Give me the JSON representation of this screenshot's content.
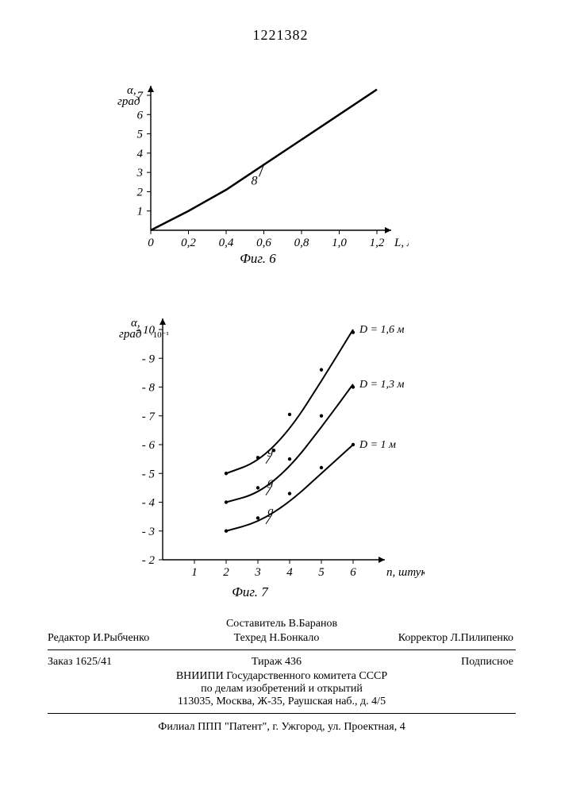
{
  "docNumber": "1221382",
  "fig6": {
    "type": "line",
    "caption": "Фиг. 6",
    "ylabel": "α, град",
    "xlabel": "L, м",
    "xlim": [
      0,
      1.2
    ],
    "ylim": [
      0,
      7
    ],
    "xticks": [
      0,
      0.2,
      0.4,
      0.6,
      0.8,
      1.0,
      1.2
    ],
    "xtick_labels": [
      "0",
      "0,2",
      "0,4",
      "0,6",
      "0,8",
      "1,0",
      "1,2"
    ],
    "yticks": [
      1,
      2,
      3,
      4,
      5,
      6,
      7
    ],
    "curve_label": "8",
    "curve_points_xy": [
      [
        0,
        0
      ],
      [
        0.2,
        1.0
      ],
      [
        0.4,
        2.1
      ],
      [
        0.6,
        3.4
      ],
      [
        0.8,
        4.7
      ],
      [
        1.0,
        6.0
      ],
      [
        1.2,
        7.3
      ]
    ],
    "line_color": "#000000",
    "line_width": 2.5,
    "tick_fontsize": 15,
    "label_fontsize": 15
  },
  "fig7": {
    "type": "line-scatter",
    "caption": "Фиг. 7",
    "ylabel": "α, град ·10⁻¹",
    "xlabel": "n, штук",
    "xlim": [
      0,
      6.5
    ],
    "ylim": [
      2,
      10
    ],
    "xticks": [
      1,
      2,
      3,
      4,
      5,
      6
    ],
    "yticks": [
      2,
      3,
      4,
      5,
      6,
      7,
      8,
      9,
      10
    ],
    "ytick_labels": [
      "- 2",
      "- 3",
      "- 4",
      "- 5",
      "- 6",
      "- 7",
      "- 8",
      "- 9",
      "- 10"
    ],
    "series": [
      {
        "label": "D = 1,6 м",
        "curve_label": "g",
        "points_xy": [
          [
            2,
            5.0
          ],
          [
            3,
            5.55
          ],
          [
            3.5,
            5.8
          ],
          [
            4,
            7.05
          ],
          [
            5,
            8.6
          ],
          [
            6,
            9.9
          ]
        ],
        "line_xy": [
          [
            2,
            5.0
          ],
          [
            3,
            5.4
          ],
          [
            4,
            6.5
          ],
          [
            5,
            8.2
          ],
          [
            6,
            10.0
          ]
        ]
      },
      {
        "label": "D = 1,3 м",
        "curve_label": "g",
        "points_xy": [
          [
            2,
            4.0
          ],
          [
            3,
            4.5
          ],
          [
            4,
            5.5
          ],
          [
            5,
            7.0
          ],
          [
            6,
            8.0
          ]
        ],
        "line_xy": [
          [
            2,
            4.0
          ],
          [
            3,
            4.3
          ],
          [
            4,
            5.2
          ],
          [
            5,
            6.6
          ],
          [
            6,
            8.1
          ]
        ]
      },
      {
        "label": "D = 1 м",
        "curve_label": "g",
        "points_xy": [
          [
            2,
            3.0
          ],
          [
            3,
            3.45
          ],
          [
            4,
            4.3
          ],
          [
            5,
            5.2
          ],
          [
            6,
            6.0
          ]
        ],
        "line_xy": [
          [
            2,
            3.0
          ],
          [
            3,
            3.3
          ],
          [
            4,
            4.0
          ],
          [
            5,
            5.0
          ],
          [
            6,
            6.0
          ]
        ]
      }
    ],
    "marker_radius": 2.2,
    "line_color": "#000000",
    "line_width": 2.0,
    "tick_fontsize": 15,
    "label_fontsize": 15
  },
  "credits": {
    "compiler": "Составитель В.Баранов",
    "editor": "Редактор И.Рыбченко",
    "tech": "Техред Н.Бонкало",
    "corrector": "Корректор Л.Пилипенко"
  },
  "pubinfo": {
    "order": "Заказ 1625/41",
    "tirazh": "Тираж 436",
    "sign": "Подписное",
    "org1": "ВНИИПИ Государственного комитета СССР",
    "org2": "по делам изобретений и открытий",
    "addr1": "113035, Москва, Ж-35, Раушская наб., д. 4/5",
    "addr2": "Филиал ППП \"Патент\", г. Ужгород, ул. Проектная, 4"
  }
}
